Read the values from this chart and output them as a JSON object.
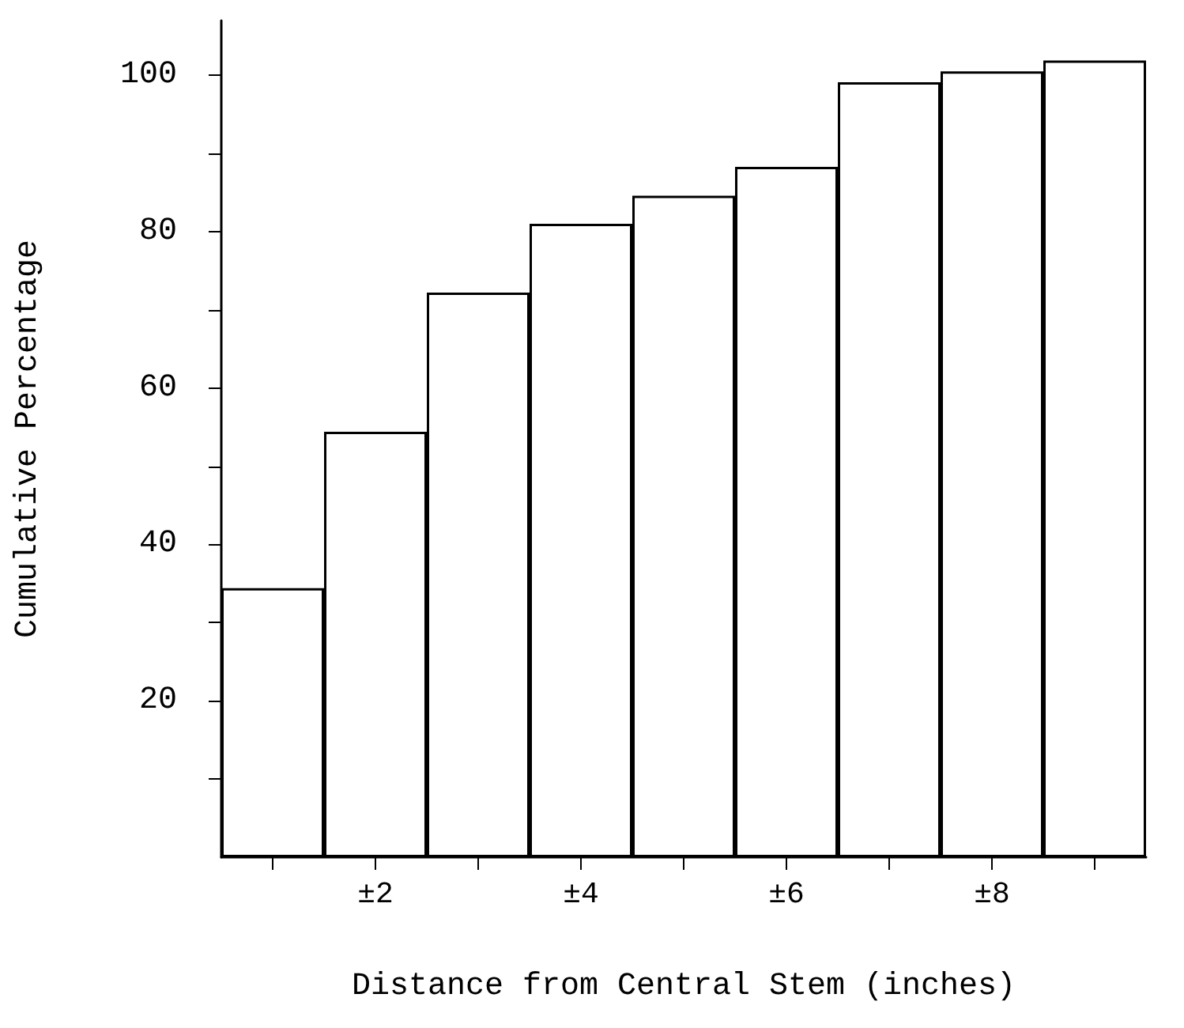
{
  "chart_data": {
    "type": "bar",
    "xlabel": "Distance from Central Stem (inches)",
    "ylabel": "Cumulative Percentage",
    "categories": [
      null,
      "±2",
      null,
      "±4",
      null,
      "±6",
      null,
      "±8",
      null
    ],
    "values": [
      34.4,
      54.4,
      72.2,
      81.0,
      84.6,
      88.3,
      99.1,
      100.5,
      101.9
    ],
    "color": "#ffffff",
    "ylim": [
      0,
      107
    ],
    "yticks": [
      {
        "value": 10,
        "label": null
      },
      20,
      {
        "value": 30,
        "label": null
      },
      40,
      {
        "value": 50,
        "label": null
      },
      60,
      {
        "value": 70,
        "label": null
      },
      80,
      {
        "value": 90,
        "label": null
      },
      100
    ],
    "grid": false
  }
}
